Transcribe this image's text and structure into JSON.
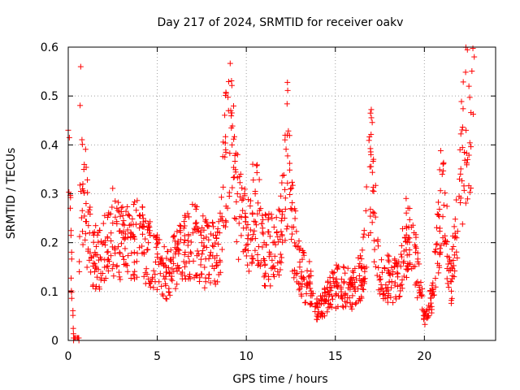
{
  "chart_data": {
    "type": "scatter",
    "title": "Day 217 of 2024, SRMTID for receiver oakv",
    "xlabel": "GPS time / hours",
    "ylabel": "SRMTID / TECUs",
    "xlim": [
      0,
      24
    ],
    "ylim": [
      0,
      0.6
    ],
    "xticks": [
      0,
      5,
      10,
      15,
      20
    ],
    "xtick_labels": [
      "0",
      "5",
      "10",
      "15",
      "20"
    ],
    "yticks": [
      0,
      0.1,
      0.2,
      0.3,
      0.4,
      0.5,
      0.6
    ],
    "ytick_labels": [
      "0",
      "0.1",
      "0.2",
      "0.3",
      "0.4",
      "0.5",
      "0.6"
    ],
    "grid": true,
    "marker": "+",
    "marker_color": "#ff0000",
    "series": [
      {
        "name": "SRMTID",
        "note": "dense scatter of roughly 1,800 samples; representative envelope values below",
        "x": [
          0.0,
          0.3,
          0.6,
          0.7,
          0.8,
          0.9,
          1.0,
          1.2,
          1.5,
          2.0,
          2.5,
          3.0,
          3.5,
          4.0,
          4.5,
          5.0,
          5.5,
          6.0,
          6.5,
          7.0,
          7.5,
          8.0,
          8.5,
          9.0,
          9.2,
          9.5,
          10.0,
          10.5,
          11.0,
          11.5,
          12.0,
          12.3,
          12.5,
          13.0,
          13.5,
          14.0,
          14.5,
          15.0,
          15.5,
          16.0,
          16.5,
          17.0,
          17.5,
          18.0,
          18.5,
          19.0,
          19.5,
          20.0,
          20.5,
          21.0,
          21.5,
          22.0,
          22.5,
          22.8
        ],
        "y": [
          0.43,
          0.0,
          0.0,
          0.56,
          0.31,
          0.36,
          0.28,
          0.22,
          0.18,
          0.2,
          0.24,
          0.22,
          0.21,
          0.23,
          0.2,
          0.17,
          0.15,
          0.19,
          0.2,
          0.22,
          0.2,
          0.18,
          0.22,
          0.47,
          0.4,
          0.3,
          0.23,
          0.3,
          0.2,
          0.2,
          0.25,
          0.42,
          0.27,
          0.15,
          0.13,
          0.07,
          0.09,
          0.12,
          0.12,
          0.11,
          0.15,
          0.38,
          0.13,
          0.14,
          0.13,
          0.23,
          0.18,
          0.05,
          0.1,
          0.34,
          0.12,
          0.39,
          0.52,
          0.58
        ]
      }
    ]
  }
}
